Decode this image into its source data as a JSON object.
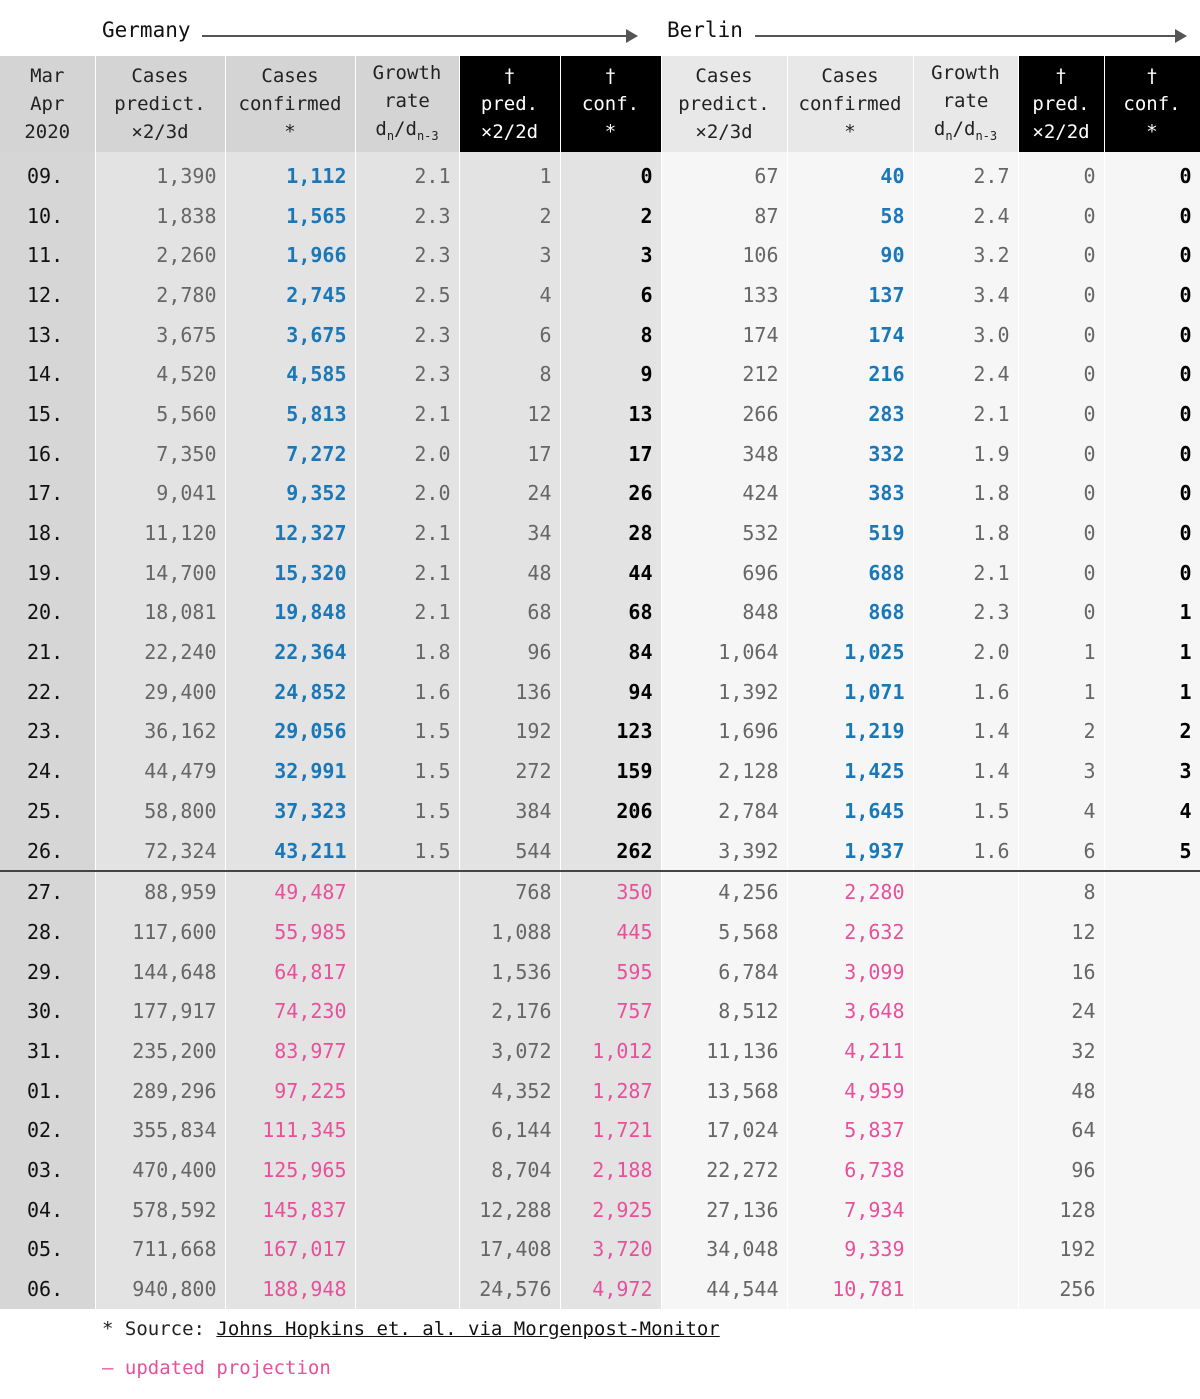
{
  "regions": {
    "germany": "Germany",
    "berlin": "Berlin"
  },
  "headers": [
    [
      "Mar",
      "Apr",
      "2020"
    ],
    [
      "Cases",
      "predict.",
      "×2/3d"
    ],
    [
      "Cases",
      "confirmed",
      "*"
    ],
    [
      "Growth",
      "rate",
      "dn/dn-3"
    ],
    [
      "†",
      "pred.",
      "×2/2d"
    ],
    [
      "†",
      "conf.",
      "*"
    ],
    [
      "Cases",
      "predict.",
      "×2/3d"
    ],
    [
      "Cases",
      "confirmed",
      "*"
    ],
    [
      "Growth",
      "rate",
      "dn/dn-3"
    ],
    [
      "†",
      "pred.",
      "×2/2d"
    ],
    [
      "†",
      "conf.",
      "*"
    ]
  ],
  "rows": [
    [
      "09.",
      "1,390",
      "1,112",
      "2.1",
      "1",
      "0",
      "67",
      "40",
      "2.7",
      "0",
      "0"
    ],
    [
      "10.",
      "1,838",
      "1,565",
      "2.3",
      "2",
      "2",
      "87",
      "58",
      "2.4",
      "0",
      "0"
    ],
    [
      "11.",
      "2,260",
      "1,966",
      "2.3",
      "3",
      "3",
      "106",
      "90",
      "3.2",
      "0",
      "0"
    ],
    [
      "12.",
      "2,780",
      "2,745",
      "2.5",
      "4",
      "6",
      "133",
      "137",
      "3.4",
      "0",
      "0"
    ],
    [
      "13.",
      "3,675",
      "3,675",
      "2.3",
      "6",
      "8",
      "174",
      "174",
      "3.0",
      "0",
      "0"
    ],
    [
      "14.",
      "4,520",
      "4,585",
      "2.3",
      "8",
      "9",
      "212",
      "216",
      "2.4",
      "0",
      "0"
    ],
    [
      "15.",
      "5,560",
      "5,813",
      "2.1",
      "12",
      "13",
      "266",
      "283",
      "2.1",
      "0",
      "0"
    ],
    [
      "16.",
      "7,350",
      "7,272",
      "2.0",
      "17",
      "17",
      "348",
      "332",
      "1.9",
      "0",
      "0"
    ],
    [
      "17.",
      "9,041",
      "9,352",
      "2.0",
      "24",
      "26",
      "424",
      "383",
      "1.8",
      "0",
      "0"
    ],
    [
      "18.",
      "11,120",
      "12,327",
      "2.1",
      "34",
      "28",
      "532",
      "519",
      "1.8",
      "0",
      "0"
    ],
    [
      "19.",
      "14,700",
      "15,320",
      "2.1",
      "48",
      "44",
      "696",
      "688",
      "2.1",
      "0",
      "0"
    ],
    [
      "20.",
      "18,081",
      "19,848",
      "2.1",
      "68",
      "68",
      "848",
      "868",
      "2.3",
      "0",
      "1"
    ],
    [
      "21.",
      "22,240",
      "22,364",
      "1.8",
      "96",
      "84",
      "1,064",
      "1,025",
      "2.0",
      "1",
      "1"
    ],
    [
      "22.",
      "29,400",
      "24,852",
      "1.6",
      "136",
      "94",
      "1,392",
      "1,071",
      "1.6",
      "1",
      "1"
    ],
    [
      "23.",
      "36,162",
      "29,056",
      "1.5",
      "192",
      "123",
      "1,696",
      "1,219",
      "1.4",
      "2",
      "2"
    ],
    [
      "24.",
      "44,479",
      "32,991",
      "1.5",
      "272",
      "159",
      "2,128",
      "1,425",
      "1.4",
      "3",
      "3"
    ],
    [
      "25.",
      "58,800",
      "37,323",
      "1.5",
      "384",
      "206",
      "2,784",
      "1,645",
      "1.5",
      "4",
      "4"
    ],
    [
      "26.",
      "72,324",
      "43,211",
      "1.5",
      "544",
      "262",
      "3,392",
      "1,937",
      "1.6",
      "6",
      "5"
    ],
    [
      "27.",
      "88,959",
      "49,487",
      "",
      "768",
      "350",
      "4,256",
      "2,280",
      "",
      "8",
      ""
    ],
    [
      "28.",
      "117,600",
      "55,985",
      "",
      "1,088",
      "445",
      "5,568",
      "2,632",
      "",
      "12",
      ""
    ],
    [
      "29.",
      "144,648",
      "64,817",
      "",
      "1,536",
      "595",
      "6,784",
      "3,099",
      "",
      "16",
      ""
    ],
    [
      "30.",
      "177,917",
      "74,230",
      "",
      "2,176",
      "757",
      "8,512",
      "3,648",
      "",
      "24",
      ""
    ],
    [
      "31.",
      "235,200",
      "83,977",
      "",
      "3,072",
      "1,012",
      "11,136",
      "4,211",
      "",
      "32",
      ""
    ],
    [
      "01.",
      "289,296",
      "97,225",
      "",
      "4,352",
      "1,287",
      "13,568",
      "4,959",
      "",
      "48",
      ""
    ],
    [
      "02.",
      "355,834",
      "111,345",
      "",
      "6,144",
      "1,721",
      "17,024",
      "5,837",
      "",
      "64",
      ""
    ],
    [
      "03.",
      "470,400",
      "125,965",
      "",
      "8,704",
      "2,188",
      "22,272",
      "6,738",
      "",
      "96",
      ""
    ],
    [
      "04.",
      "578,592",
      "145,837",
      "",
      "12,288",
      "2,925",
      "27,136",
      "7,934",
      "",
      "128",
      ""
    ],
    [
      "05.",
      "711,668",
      "167,017",
      "",
      "17,408",
      "3,720",
      "34,048",
      "9,339",
      "",
      "192",
      ""
    ],
    [
      "06.",
      "940,800",
      "188,948",
      "",
      "24,576",
      "4,972",
      "44,544",
      "10,781",
      "",
      "256",
      ""
    ]
  ],
  "confirmed_rows": 18,
  "footer": {
    "source_prefix": "* Source: ",
    "source_link": "Johns Hopkins et. al. via Morgenpost-Monitor",
    "legend": "– updated projection"
  },
  "colors": {
    "confirmed": "#1a78b8",
    "projection": "#e8509a",
    "dark_header": "#000000"
  }
}
